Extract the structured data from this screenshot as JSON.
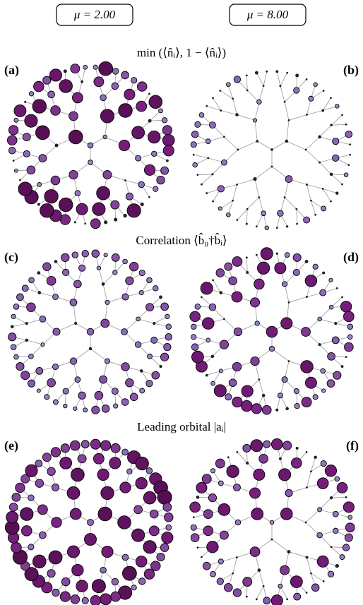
{
  "header": {
    "left": "μ = 2.00",
    "right": "μ = 8.00"
  },
  "rows": [
    {
      "title": "min (⟨n̂ᵢ⟩, 1 − ⟨n̂ᵢ⟩)",
      "panels": [
        "(a)",
        "(b)"
      ]
    },
    {
      "title": "Correlation ⟨b̂₀†b̂ᵢ⟩",
      "panels": [
        "(c)",
        "(d)"
      ]
    },
    {
      "title": "Leading orbital |aᵢ|",
      "panels": [
        "(e)",
        "(f)"
      ]
    }
  ]
}
